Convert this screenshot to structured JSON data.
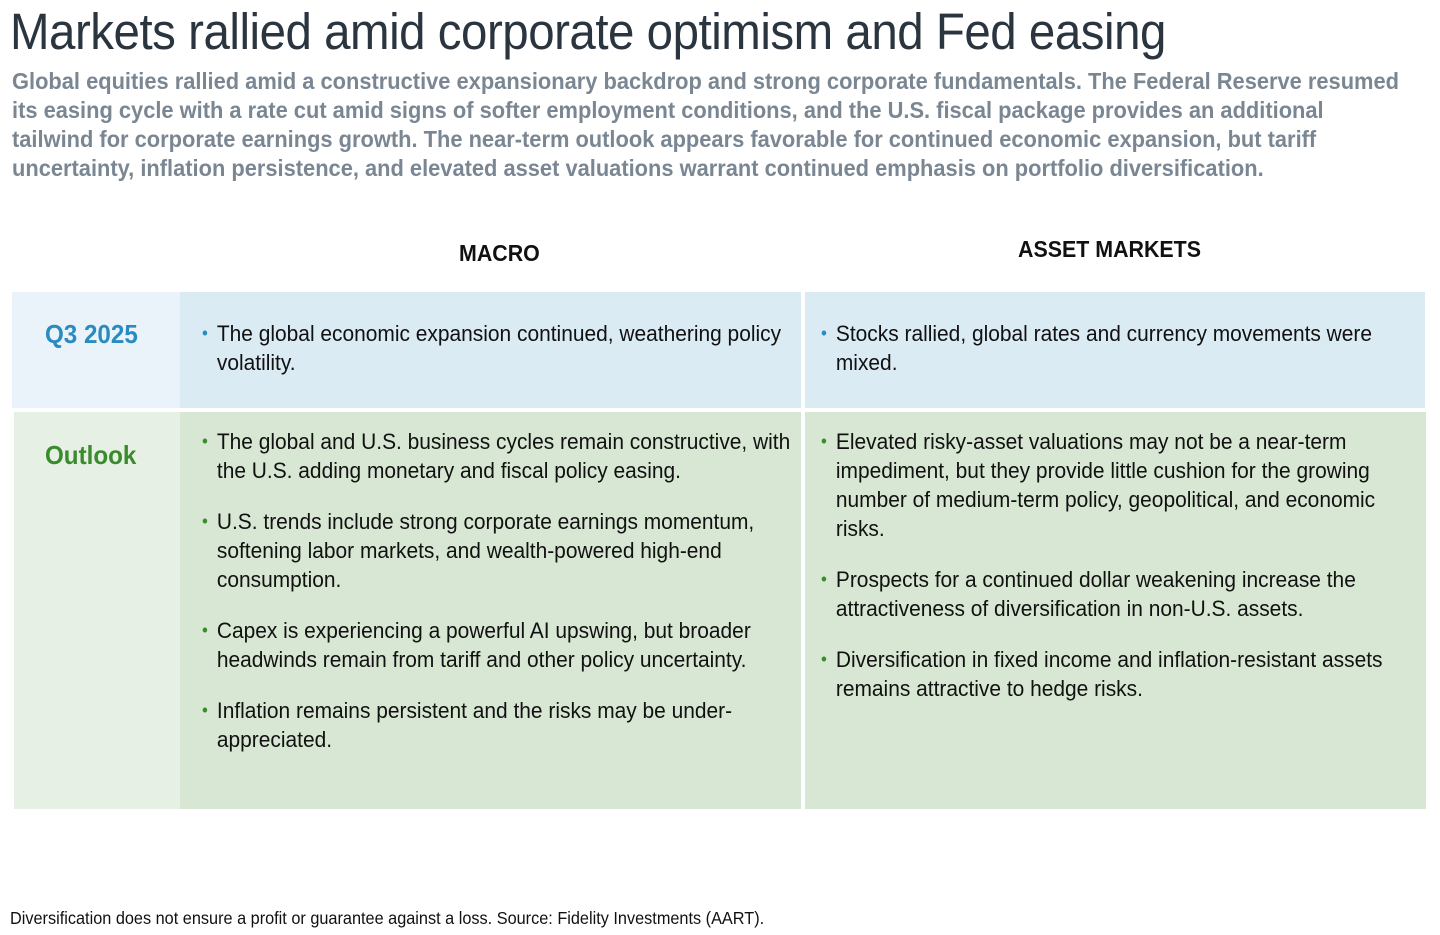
{
  "title": "Markets rallied amid corporate optimism and Fed easing",
  "subtitle": "Global equities rallied amid a constructive expansionary backdrop and strong corporate fundamentals. The Federal Reserve resumed its easing cycle with a rate cut amid signs of softer employment conditions, and the U.S. fiscal package provides an additional tailwind for corporate earnings growth. The near-term outlook appears favorable for continued economic expansion, but tariff uncertainty, inflation persistence, and elevated asset valuations warrant continued emphasis on portfolio diversification.",
  "columns": {
    "macro": "MACRO",
    "asset_markets": "ASSET MARKETS"
  },
  "rows": {
    "q3": {
      "label": "Q3 2025",
      "label_color": "#2a8bc0",
      "macro": [
        "The global economic expansion continued, weathering policy volatility."
      ],
      "asset_markets": [
        "Stocks rallied, global rates and currency movements were mixed."
      ]
    },
    "outlook": {
      "label": "Outlook",
      "label_color": "#3a8a2e",
      "macro": [
        "The global and U.S. business cycles remain constructive, with the U.S. adding monetary and fiscal policy easing.",
        "U.S. trends include strong corporate earnings momentum, softening labor markets, and wealth-powered high-end consumption.",
        "Capex is experiencing a powerful AI upswing, but broader headwinds remain from tariff and other policy uncertainty.",
        "Inflation remains persistent and the risks may be under-appreciated."
      ],
      "asset_markets": [
        "Elevated risky-asset valuations may not be a near-term impediment, but they provide little cushion for the growing number of medium-term policy, geopolitical, and economic risks.",
        "Prospects for a continued dollar weakening increase the attractiveness of diversification in non-U.S. assets.",
        "Diversification in fixed income and inflation-resistant assets remains attractive to hedge risks."
      ]
    }
  },
  "footer": "Diversification does not ensure a profit or guarantee against a loss. Source: Fidelity Investments (AART)."
}
